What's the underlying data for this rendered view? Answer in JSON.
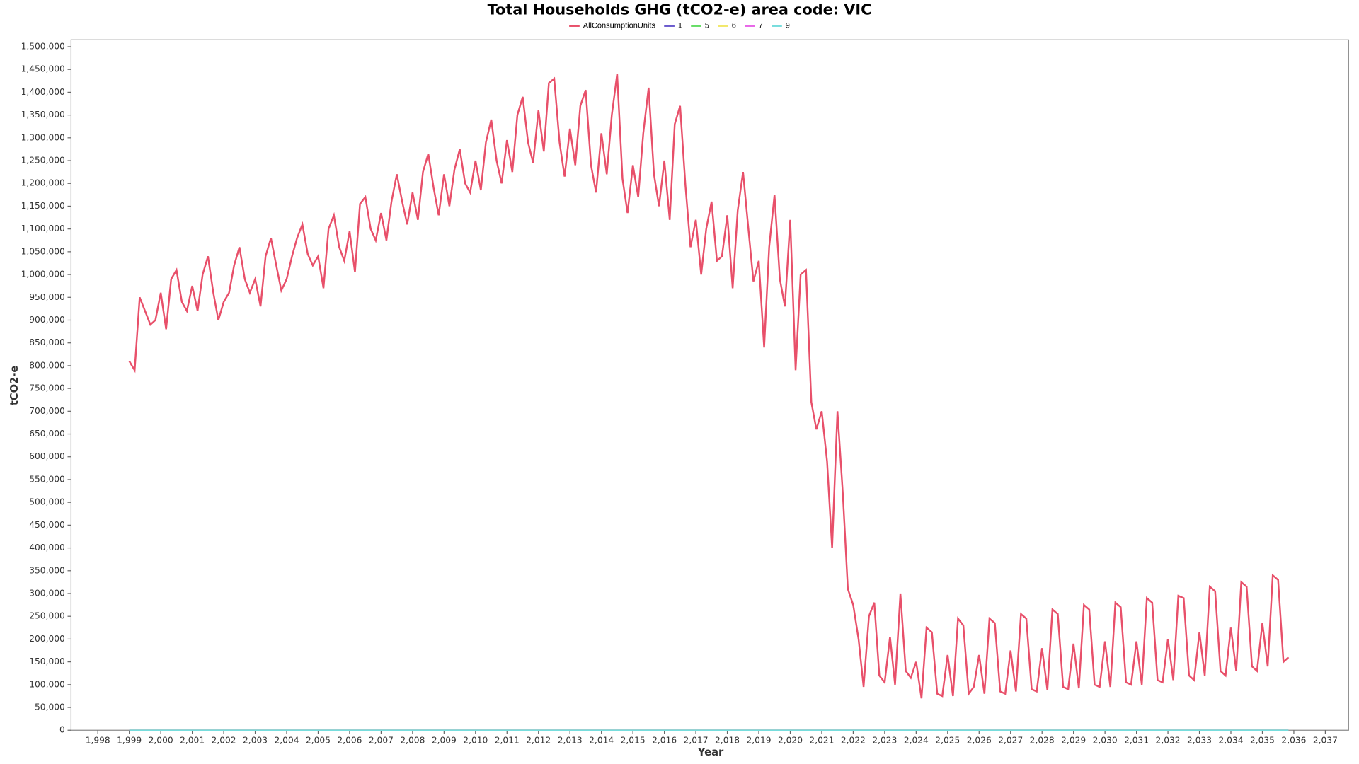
{
  "chart_data": {
    "type": "line",
    "title": "Total Households GHG (tCO2-e) area code: VIC",
    "x_label": "Year",
    "y_label": "tCO2-e",
    "xlim": [
      1997.15,
      2037.74
    ],
    "ylim": [
      0,
      1515000
    ],
    "xticks": [
      {
        "value": 1998,
        "label": "1,998"
      },
      {
        "value": 1999,
        "label": "1,999"
      },
      {
        "value": 2000,
        "label": "2,000"
      },
      {
        "value": 2001,
        "label": "2,001"
      },
      {
        "value": 2002,
        "label": "2,002"
      },
      {
        "value": 2003,
        "label": "2,003"
      },
      {
        "value": 2004,
        "label": "2,004"
      },
      {
        "value": 2005,
        "label": "2,005"
      },
      {
        "value": 2006,
        "label": "2,006"
      },
      {
        "value": 2007,
        "label": "2,007"
      },
      {
        "value": 2008,
        "label": "2,008"
      },
      {
        "value": 2009,
        "label": "2,009"
      },
      {
        "value": 2010,
        "label": "2,010"
      },
      {
        "value": 2011,
        "label": "2,011"
      },
      {
        "value": 2012,
        "label": "2,012"
      },
      {
        "value": 2013,
        "label": "2,013"
      },
      {
        "value": 2014,
        "label": "2,014"
      },
      {
        "value": 2015,
        "label": "2,015"
      },
      {
        "value": 2016,
        "label": "2,016"
      },
      {
        "value": 2017,
        "label": "2,017"
      },
      {
        "value": 2018,
        "label": "2,018"
      },
      {
        "value": 2019,
        "label": "2,019"
      },
      {
        "value": 2020,
        "label": "2,020"
      },
      {
        "value": 2021,
        "label": "2,021"
      },
      {
        "value": 2022,
        "label": "2,022"
      },
      {
        "value": 2023,
        "label": "2,023"
      },
      {
        "value": 2024,
        "label": "2,024"
      },
      {
        "value": 2025,
        "label": "2,025"
      },
      {
        "value": 2026,
        "label": "2,026"
      },
      {
        "value": 2027,
        "label": "2,027"
      },
      {
        "value": 2028,
        "label": "2,028"
      },
      {
        "value": 2029,
        "label": "2,029"
      },
      {
        "value": 2030,
        "label": "2,030"
      },
      {
        "value": 2031,
        "label": "2,031"
      },
      {
        "value": 2032,
        "label": "2,032"
      },
      {
        "value": 2033,
        "label": "2,033"
      },
      {
        "value": 2034,
        "label": "2,034"
      },
      {
        "value": 2035,
        "label": "2,035"
      },
      {
        "value": 2036,
        "label": "2,036"
      },
      {
        "value": 2037,
        "label": "2,037"
      }
    ],
    "yticks": [
      0,
      {
        "value": 50000,
        "label": "50,000"
      },
      {
        "value": 100000,
        "label": "100,000"
      },
      {
        "value": 150000,
        "label": "150,000"
      },
      {
        "value": 200000,
        "label": "200,000"
      },
      {
        "value": 250000,
        "label": "250,000"
      },
      {
        "value": 300000,
        "label": "300,000"
      },
      {
        "value": 350000,
        "label": "350,000"
      },
      {
        "value": 400000,
        "label": "400,000"
      },
      {
        "value": 450000,
        "label": "450,000"
      },
      {
        "value": 500000,
        "label": "500,000"
      },
      {
        "value": 550000,
        "label": "550,000"
      },
      {
        "value": 600000,
        "label": "600,000"
      },
      {
        "value": 650000,
        "label": "650,000"
      },
      {
        "value": 700000,
        "label": "700,000"
      },
      {
        "value": 750000,
        "label": "750,000"
      },
      {
        "value": 800000,
        "label": "800,000"
      },
      {
        "value": 850000,
        "label": "850,000"
      },
      {
        "value": 900000,
        "label": "900,000"
      },
      {
        "value": 950000,
        "label": "950,000"
      },
      {
        "value": 1000000,
        "label": "1,000,000"
      },
      {
        "value": 1050000,
        "label": "1,050,000"
      },
      {
        "value": 1100000,
        "label": "1,100,000"
      },
      {
        "value": 1150000,
        "label": "1,150,000"
      },
      {
        "value": 1200000,
        "label": "1,200,000"
      },
      {
        "value": 1250000,
        "label": "1,250,000"
      },
      {
        "value": 1300000,
        "label": "1,300,000"
      },
      {
        "value": 1350000,
        "label": "1,350,000"
      },
      {
        "value": 1400000,
        "label": "1,400,000"
      },
      {
        "value": 1450000,
        "label": "1,450,000"
      },
      {
        "value": 1500000,
        "label": "1,500,000"
      }
    ],
    "grid": false,
    "series": [
      {
        "name": "AllConsumptionUnits",
        "color": "#e8506a",
        "x": [
          1999,
          1999.17,
          1999.33,
          1999.5,
          1999.67,
          1999.83,
          2000,
          2000.17,
          2000.33,
          2000.5,
          2000.67,
          2000.83,
          2001,
          2001.17,
          2001.33,
          2001.5,
          2001.67,
          2001.83,
          2002,
          2002.17,
          2002.33,
          2002.5,
          2002.67,
          2002.83,
          2003,
          2003.17,
          2003.33,
          2003.5,
          2003.67,
          2003.83,
          2004,
          2004.17,
          2004.33,
          2004.5,
          2004.67,
          2004.83,
          2005,
          2005.17,
          2005.33,
          2005.5,
          2005.67,
          2005.83,
          2006,
          2006.17,
          2006.33,
          2006.5,
          2006.67,
          2006.83,
          2007,
          2007.17,
          2007.33,
          2007.5,
          2007.67,
          2007.83,
          2008,
          2008.17,
          2008.33,
          2008.5,
          2008.67,
          2008.83,
          2009,
          2009.17,
          2009.33,
          2009.5,
          2009.67,
          2009.83,
          2010,
          2010.17,
          2010.33,
          2010.5,
          2010.67,
          2010.83,
          2011,
          2011.17,
          2011.33,
          2011.5,
          2011.67,
          2011.83,
          2012,
          2012.17,
          2012.33,
          2012.5,
          2012.67,
          2012.83,
          2013,
          2013.17,
          2013.33,
          2013.5,
          2013.67,
          2013.83,
          2014,
          2014.17,
          2014.33,
          2014.5,
          2014.67,
          2014.83,
          2015,
          2015.17,
          2015.33,
          2015.5,
          2015.67,
          2015.83,
          2016,
          2016.17,
          2016.33,
          2016.5,
          2016.67,
          2016.83,
          2017,
          2017.17,
          2017.33,
          2017.5,
          2017.67,
          2017.83,
          2018,
          2018.17,
          2018.33,
          2018.5,
          2018.67,
          2018.83,
          2019,
          2019.17,
          2019.33,
          2019.5,
          2019.67,
          2019.83,
          2020,
          2020.17,
          2020.33,
          2020.5,
          2020.67,
          2020.83,
          2021,
          2021.17,
          2021.33,
          2021.5,
          2021.67,
          2021.83,
          2022,
          2022.17,
          2022.33,
          2022.5,
          2022.67,
          2022.83,
          2023,
          2023.17,
          2023.33,
          2023.5,
          2023.67,
          2023.83,
          2024,
          2024.17,
          2024.33,
          2024.5,
          2024.67,
          2024.83,
          2025,
          2025.17,
          2025.33,
          2025.5,
          2025.67,
          2025.83,
          2026,
          2026.17,
          2026.33,
          2026.5,
          2026.67,
          2026.83,
          2027,
          2027.17,
          2027.33,
          2027.5,
          2027.67,
          2027.83,
          2028,
          2028.17,
          2028.33,
          2028.5,
          2028.67,
          2028.83,
          2029,
          2029.17,
          2029.33,
          2029.5,
          2029.67,
          2029.83,
          2030,
          2030.17,
          2030.33,
          2030.5,
          2030.67,
          2030.83,
          2031,
          2031.17,
          2031.33,
          2031.5,
          2031.67,
          2031.83,
          2032,
          2032.17,
          2032.33,
          2032.5,
          2032.67,
          2032.83,
          2033,
          2033.17,
          2033.33,
          2033.5,
          2033.67,
          2033.83,
          2034,
          2034.17,
          2034.33,
          2034.5,
          2034.67,
          2034.83,
          2035,
          2035.17,
          2035.33,
          2035.5,
          2035.67,
          2035.83
        ],
        "values": [
          810000,
          790000,
          950000,
          920000,
          890000,
          900000,
          960000,
          880000,
          990000,
          1010000,
          940000,
          920000,
          975000,
          920000,
          1000000,
          1040000,
          960000,
          900000,
          940000,
          960000,
          1020000,
          1060000,
          990000,
          960000,
          990000,
          930000,
          1040000,
          1080000,
          1020000,
          965000,
          990000,
          1040000,
          1080000,
          1110000,
          1045000,
          1020000,
          1040000,
          970000,
          1100000,
          1130000,
          1060000,
          1030000,
          1095000,
          1005000,
          1155000,
          1170000,
          1100000,
          1075000,
          1135000,
          1075000,
          1160000,
          1220000,
          1160000,
          1110000,
          1180000,
          1120000,
          1225000,
          1265000,
          1190000,
          1130000,
          1220000,
          1150000,
          1230000,
          1275000,
          1200000,
          1180000,
          1250000,
          1185000,
          1290000,
          1340000,
          1250000,
          1200000,
          1295000,
          1225000,
          1350000,
          1390000,
          1290000,
          1245000,
          1360000,
          1270000,
          1420000,
          1430000,
          1290000,
          1215000,
          1320000,
          1240000,
          1370000,
          1405000,
          1240000,
          1180000,
          1310000,
          1220000,
          1350000,
          1440000,
          1210000,
          1135000,
          1240000,
          1170000,
          1310000,
          1410000,
          1220000,
          1150000,
          1250000,
          1120000,
          1330000,
          1370000,
          1195000,
          1060000,
          1120000,
          1000000,
          1100000,
          1160000,
          1030000,
          1040000,
          1130000,
          970000,
          1140000,
          1225000,
          1100000,
          985000,
          1030000,
          840000,
          1060000,
          1175000,
          990000,
          930000,
          1120000,
          790000,
          1000000,
          1010000,
          720000,
          660000,
          700000,
          590000,
          400000,
          700000,
          520000,
          310000,
          275000,
          200000,
          95000,
          250000,
          280000,
          120000,
          105000,
          205000,
          100000,
          300000,
          130000,
          115000,
          150000,
          70000,
          225000,
          215000,
          80000,
          75000,
          165000,
          75000,
          245000,
          230000,
          80000,
          95000,
          165000,
          80000,
          245000,
          235000,
          85000,
          80000,
          175000,
          85000,
          255000,
          245000,
          90000,
          85000,
          180000,
          88000,
          265000,
          255000,
          95000,
          90000,
          190000,
          92000,
          275000,
          265000,
          100000,
          95000,
          195000,
          95000,
          280000,
          270000,
          105000,
          100000,
          195000,
          100000,
          290000,
          280000,
          110000,
          105000,
          200000,
          110000,
          295000,
          290000,
          120000,
          110000,
          215000,
          120000,
          315000,
          305000,
          130000,
          120000,
          225000,
          130000,
          325000,
          315000,
          140000,
          130000,
          235000,
          140000,
          340000,
          330000,
          150000,
          160000
        ]
      },
      {
        "name": "1",
        "color": "#6a5acd",
        "x": [
          1999,
          2035.83
        ],
        "values": [
          0,
          0
        ]
      },
      {
        "name": "5",
        "color": "#66dd66",
        "x": [
          1999,
          2035.83
        ],
        "values": [
          0,
          0
        ]
      },
      {
        "name": "6",
        "color": "#f2e86a",
        "x": [
          1999,
          2035.83
        ],
        "values": [
          0,
          0
        ]
      },
      {
        "name": "7",
        "color": "#e866e8",
        "x": [
          1999,
          2035.83
        ],
        "values": [
          0,
          0
        ]
      },
      {
        "name": "9",
        "color": "#77dddd",
        "x": [
          1999,
          2035.83
        ],
        "values": [
          0,
          0
        ]
      }
    ]
  }
}
